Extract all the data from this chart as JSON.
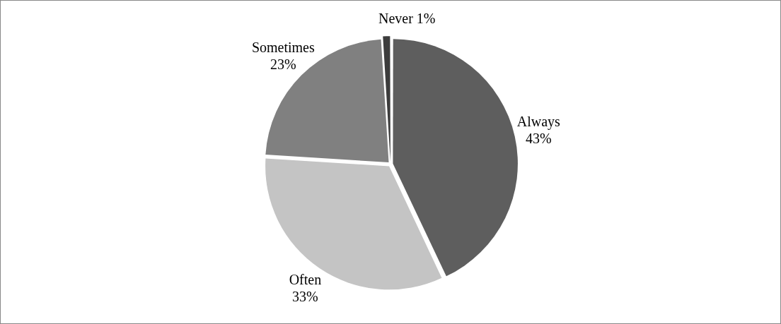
{
  "chart_data": {
    "type": "pie",
    "categories": [
      "Always",
      "Often",
      "Sometimes",
      "Never"
    ],
    "values": [
      43,
      33,
      23,
      1
    ],
    "colors": [
      "#5e5e5e",
      "#c4c4c4",
      "#808080",
      "#3c3c3c"
    ],
    "value_labels": [
      "43%",
      "33%",
      "23%",
      "1%"
    ]
  }
}
